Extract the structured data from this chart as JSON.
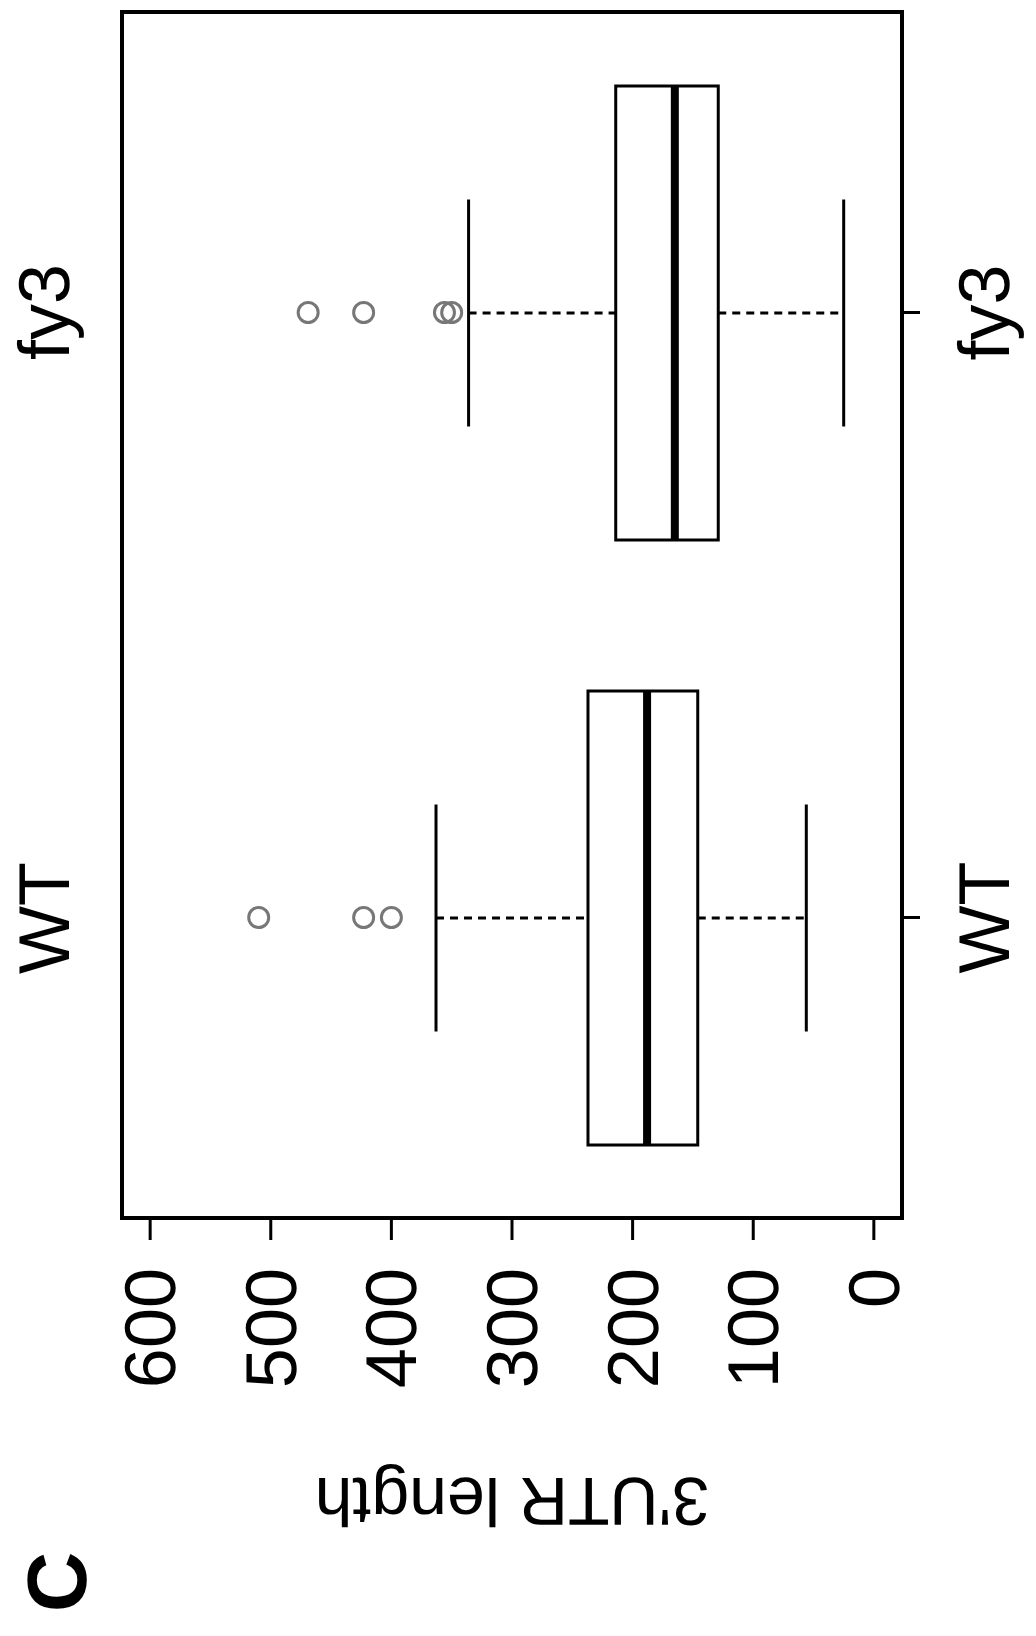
{
  "chart_data": {
    "type": "box",
    "orientation": "horizontal",
    "title": "C",
    "xlabel": "3'UTR length",
    "categories": [
      "fy3",
      "WT"
    ],
    "boxes": [
      {
        "low": 25,
        "q1": 129,
        "median": 165,
        "q3": 214,
        "high": 336,
        "outliers": [
          350,
          356,
          423,
          469
        ]
      },
      {
        "low": 56,
        "q1": 146,
        "median": 188,
        "q3": 237,
        "high": 363,
        "outliers": [
          400,
          423,
          510
        ]
      }
    ],
    "xlim": [
      625,
      -25
    ],
    "xticks": [
      600,
      500,
      400,
      300,
      200,
      100,
      0
    ],
    "grid": false,
    "annotations": [
      "fy3",
      "WT"
    ]
  }
}
